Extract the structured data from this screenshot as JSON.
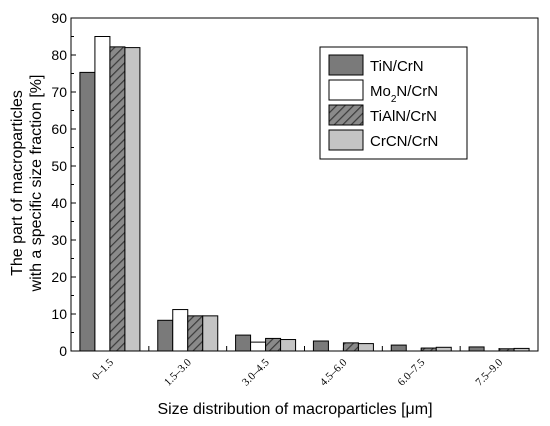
{
  "chart_data": {
    "type": "bar",
    "ylabel_line1": "The part of macroparticles",
    "ylabel_line2": "with a specific size fraction [%]",
    "xlabel": "Size distribution of macroparticles [μm]",
    "categories": [
      "0–1.5",
      "1.5–3.0",
      "3.0–4.5",
      "4.5–6.0",
      "6.0–7.5",
      "7.5–9.0"
    ],
    "ylim": [
      0,
      90
    ],
    "yticks": [
      0,
      10,
      20,
      30,
      40,
      50,
      60,
      70,
      80,
      90
    ],
    "legend_position": "top-right",
    "series": [
      {
        "name": "TiN/CrN",
        "legend_main": "TiN/CrN",
        "legend_sub": "",
        "legend_tail": "",
        "color": "#7a7a7a",
        "pattern": "solid",
        "values": [
          75.3,
          8.3,
          4.3,
          2.7,
          1.6,
          1.1
        ]
      },
      {
        "name": "Mo2N/CrN",
        "legend_main": "Mo",
        "legend_sub": "2",
        "legend_tail": "N/CrN",
        "color": "#ffffff",
        "pattern": "solid",
        "values": [
          85.0,
          11.2,
          2.4,
          0.0,
          0.0,
          0.0
        ]
      },
      {
        "name": "TiAlN/CrN",
        "legend_main": "TiAlN/CrN",
        "legend_sub": "",
        "legend_tail": "",
        "color": "#8a8a8a",
        "pattern": "hatch",
        "values": [
          82.2,
          9.5,
          3.4,
          2.2,
          0.8,
          0.6
        ]
      },
      {
        "name": "CrCN/CrN",
        "legend_main": "CrCN/CrN",
        "legend_sub": "",
        "legend_tail": "",
        "color": "#c4c4c4",
        "pattern": "solid",
        "values": [
          82.0,
          9.5,
          3.1,
          2.0,
          1.0,
          0.7
        ]
      }
    ]
  }
}
